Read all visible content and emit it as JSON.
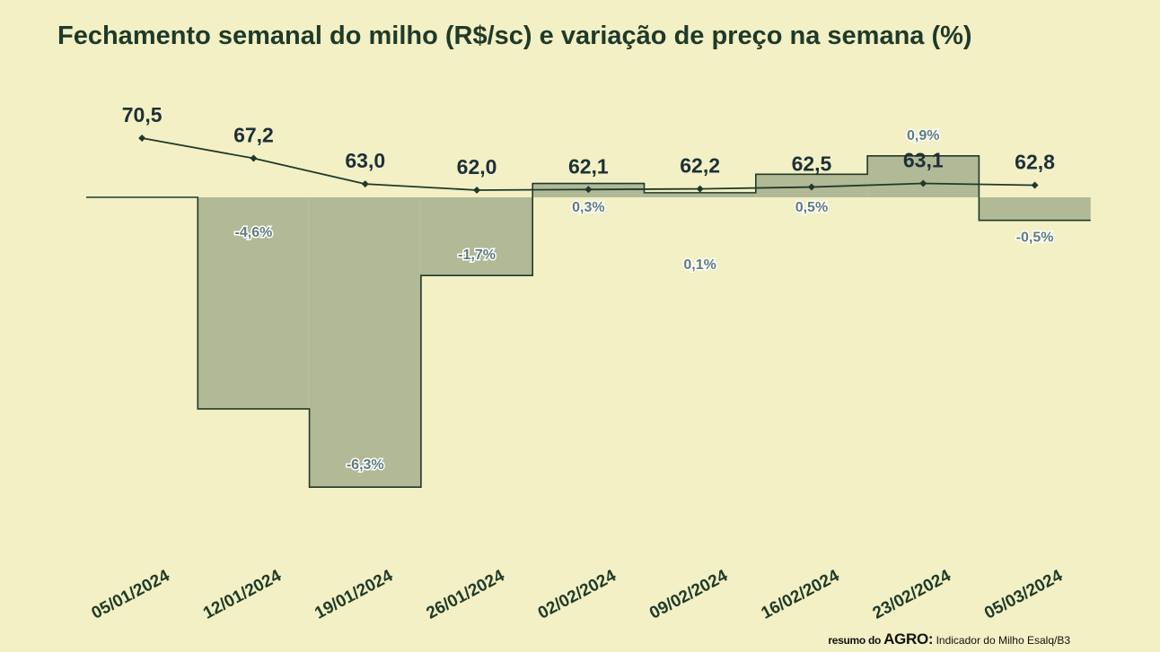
{
  "title": "Fechamento semanal do milho (R$/sc) e variação de preço na semana (%)",
  "footer": {
    "brand_prefix": "resumo do",
    "brand_main": "AGRO:",
    "source": "Indicador do Milho Esalq/B3"
  },
  "colors": {
    "background": "#f2f0c4",
    "bar_fill": "#b2b996",
    "line": "#1f3a2a",
    "price_label": "#1e2f39",
    "variation_label": "#5f7c7c"
  },
  "chart_data": [
    {
      "type": "line",
      "categories": [
        "05/01/2024",
        "12/01/2024",
        "19/01/2024",
        "26/01/2024",
        "02/02/2024",
        "09/02/2024",
        "16/02/2024",
        "23/02/2024",
        "05/03/2024"
      ],
      "values": [
        70.5,
        67.2,
        63.0,
        62.0,
        62.1,
        62.2,
        62.5,
        63.1,
        62.8
      ],
      "value_labels": [
        "70,5",
        "67,2",
        "63,0",
        "62,0",
        "62,1",
        "62,2",
        "62,5",
        "63,1",
        "62,8"
      ]
    },
    {
      "type": "bar",
      "categories": [
        "05/01/2024",
        "12/01/2024",
        "19/01/2024",
        "26/01/2024",
        "02/02/2024",
        "09/02/2024",
        "16/02/2024",
        "23/02/2024",
        "05/03/2024"
      ],
      "values": [
        0,
        -4.6,
        -6.3,
        -1.7,
        0.3,
        0.1,
        0.5,
        0.9,
        -0.5
      ],
      "value_labels": [
        "",
        "-4,6%",
        "-6,3%",
        "-1,7%",
        "0,3%",
        "0,1%",
        "0,5%",
        "0,9%",
        "-0,5%"
      ]
    }
  ]
}
